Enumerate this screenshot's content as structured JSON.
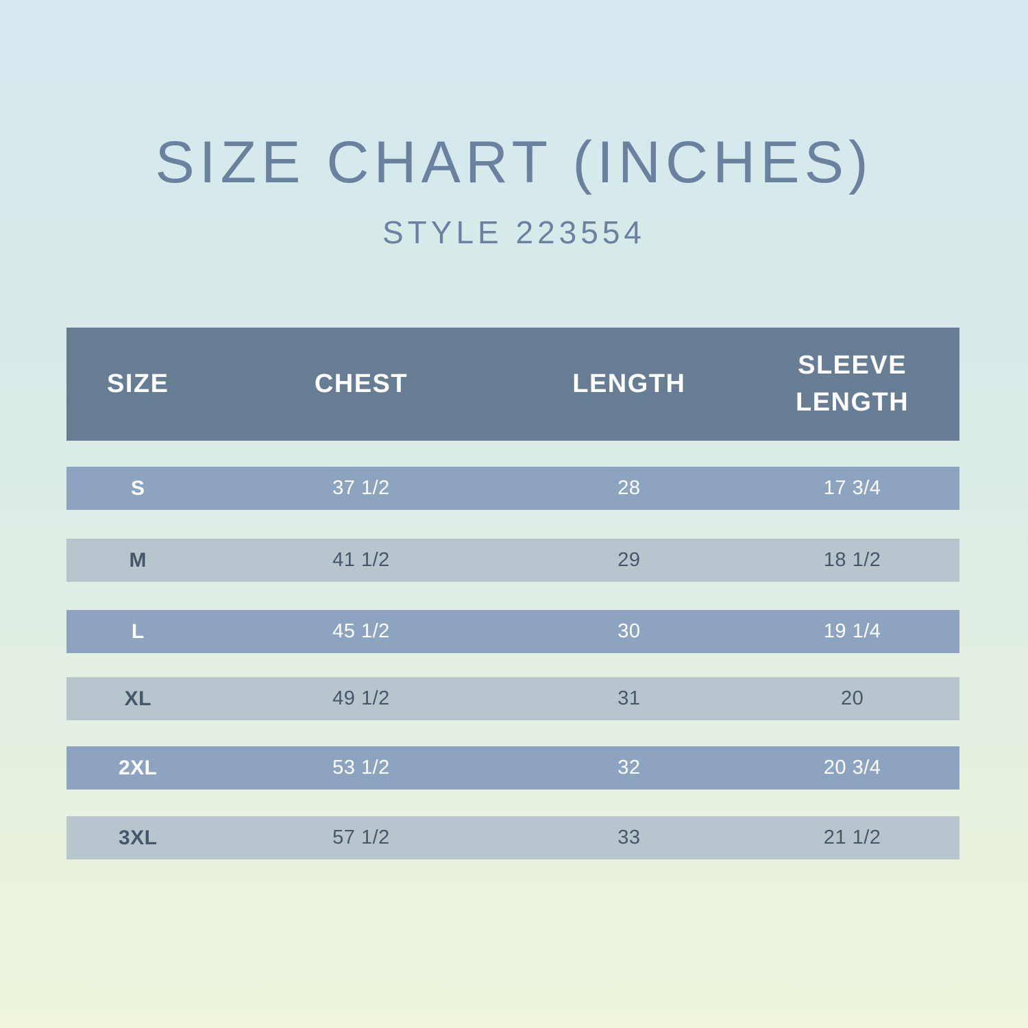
{
  "title": "SIZE CHART (INCHES)",
  "subtitle": "STYLE 223554",
  "chart_data": {
    "type": "table",
    "title": "SIZE CHART (INCHES)",
    "subtitle": "STYLE 223554",
    "units": "inches",
    "columns": [
      "SIZE",
      "CHEST",
      "LENGTH",
      "SLEEVE LENGTH"
    ],
    "rows": [
      [
        "S",
        "37 1/2",
        "28",
        "17 3/4"
      ],
      [
        "M",
        "41 1/2",
        "29",
        "18 1/2"
      ],
      [
        "L",
        "45 1/2",
        "30",
        "19 1/4"
      ],
      [
        "XL",
        "49 1/2",
        "31",
        "20"
      ],
      [
        "2XL",
        "53 1/2",
        "32",
        "20 3/4"
      ],
      [
        "3XL",
        "57 1/2",
        "33",
        "21 1/2"
      ]
    ]
  },
  "colors": {
    "background_top": "#d4e8ee",
    "background_bottom": "#eef5dc",
    "title_text": "#6a81a0",
    "header_background": "#677d93",
    "row_blue": "#8ca4c0",
    "row_light": "#b8c5cd",
    "row_dark_text": "#45586b",
    "row_light_text": "#ffffff"
  }
}
